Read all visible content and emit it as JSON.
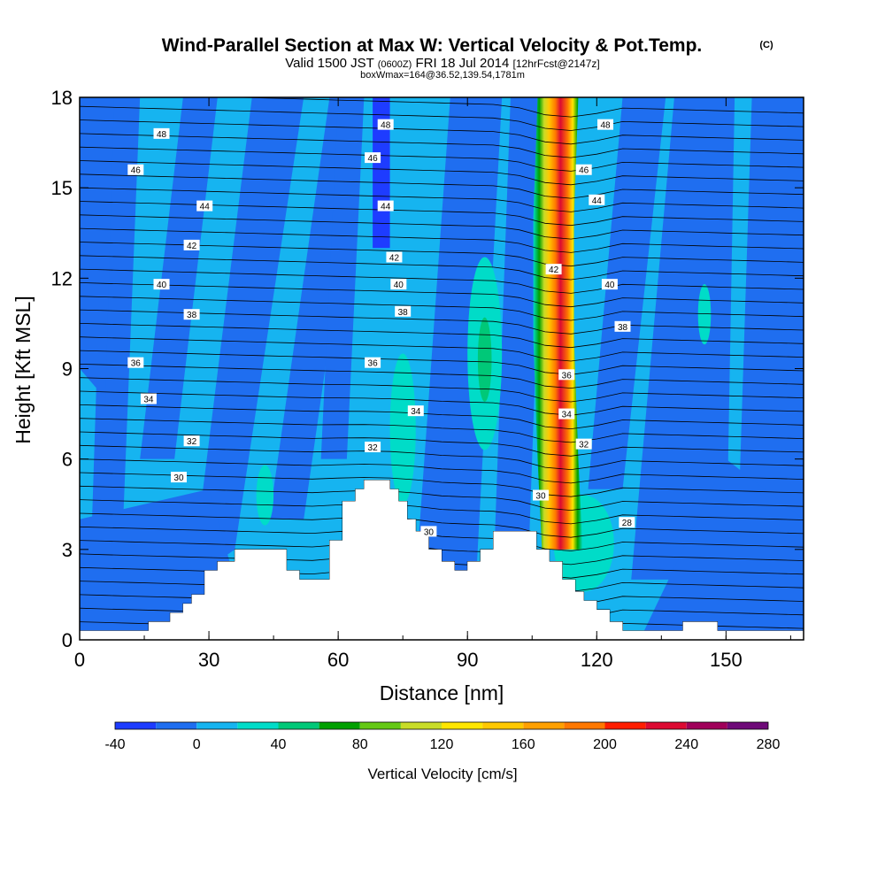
{
  "chart_data": {
    "type": "heatmap",
    "title": "Wind-Parallel Section at Max W: Vertical Velocity & Pot.Temp.",
    "title_suffix": "(C)",
    "subtitle_pre": "Valid 1500 JST ",
    "subtitle_small": "(0600Z)",
    "subtitle_post": " FRI 18 Jul 2014 ",
    "subtitle_fcst": "[12hrFcst@2147z]",
    "subtitle2": "boxWmax=164@36.52,139.54,1781m",
    "xlabel": "Distance [nm]",
    "ylabel": "Height [Kft MSL]",
    "colorbar_label": "Vertical Velocity [cm/s]",
    "xlim": [
      0,
      168
    ],
    "ylim": [
      0,
      18
    ],
    "xticks": [
      0,
      30,
      60,
      90,
      120,
      150
    ],
    "yticks": [
      0,
      3,
      6,
      9,
      12,
      15,
      18
    ],
    "colorbar_levels": [
      -40,
      -20,
      0,
      20,
      40,
      60,
      80,
      100,
      120,
      140,
      160,
      180,
      200,
      220,
      240,
      260,
      280
    ],
    "colorbar_ticks": [
      -40,
      0,
      40,
      80,
      120,
      160,
      200,
      240,
      280
    ],
    "colors": [
      "#1e3cff",
      "#1f6ef0",
      "#16b4f0",
      "#00dcc8",
      "#00c878",
      "#00a000",
      "#64c814",
      "#c8dc28",
      "#ffe600",
      "#ffc800",
      "#ffa000",
      "#ff7800",
      "#ff1e00",
      "#dc0a32",
      "#a0005a",
      "#6e0a78"
    ],
    "theta_contours": [
      {
        "value": "28",
        "x": 127,
        "y": 3.9
      },
      {
        "value": "30",
        "x": 23,
        "y": 5.4
      },
      {
        "value": "30",
        "x": 81,
        "y": 3.6
      },
      {
        "value": "30",
        "x": 107,
        "y": 4.8
      },
      {
        "value": "32",
        "x": 26,
        "y": 6.6
      },
      {
        "value": "32",
        "x": 68,
        "y": 6.4
      },
      {
        "value": "32",
        "x": 117,
        "y": 6.5
      },
      {
        "value": "34",
        "x": 16,
        "y": 8.0
      },
      {
        "value": "34",
        "x": 78,
        "y": 7.6
      },
      {
        "value": "34",
        "x": 113,
        "y": 7.5
      },
      {
        "value": "36",
        "x": 13,
        "y": 9.2
      },
      {
        "value": "36",
        "x": 68,
        "y": 9.2
      },
      {
        "value": "36",
        "x": 113,
        "y": 8.8
      },
      {
        "value": "38",
        "x": 26,
        "y": 10.8
      },
      {
        "value": "38",
        "x": 75,
        "y": 10.9
      },
      {
        "value": "38",
        "x": 126,
        "y": 10.4
      },
      {
        "value": "40",
        "x": 19,
        "y": 11.8
      },
      {
        "value": "40",
        "x": 74,
        "y": 11.8
      },
      {
        "value": "40",
        "x": 123,
        "y": 11.8
      },
      {
        "value": "42",
        "x": 26,
        "y": 13.1
      },
      {
        "value": "42",
        "x": 73,
        "y": 12.7
      },
      {
        "value": "42",
        "x": 110,
        "y": 12.3
      },
      {
        "value": "44",
        "x": 29,
        "y": 14.4
      },
      {
        "value": "44",
        "x": 71,
        "y": 14.4
      },
      {
        "value": "44",
        "x": 120,
        "y": 14.6
      },
      {
        "value": "46",
        "x": 13,
        "y": 15.6
      },
      {
        "value": "46",
        "x": 68,
        "y": 16.0
      },
      {
        "value": "46",
        "x": 117,
        "y": 15.6
      },
      {
        "value": "48",
        "x": 19,
        "y": 16.8
      },
      {
        "value": "48",
        "x": 71,
        "y": 17.1
      },
      {
        "value": "48",
        "x": 122,
        "y": 17.1
      }
    ],
    "terrain_height_kft": [
      [
        0,
        0.3
      ],
      [
        13,
        0.3
      ],
      [
        16,
        0.6
      ],
      [
        21,
        0.9
      ],
      [
        24,
        1.2
      ],
      [
        26,
        1.5
      ],
      [
        29,
        2.3
      ],
      [
        32,
        2.6
      ],
      [
        36,
        3.0
      ],
      [
        45,
        3.0
      ],
      [
        48,
        2.3
      ],
      [
        51,
        2.0
      ],
      [
        56,
        2.0
      ],
      [
        58,
        3.3
      ],
      [
        61,
        4.6
      ],
      [
        64,
        5.0
      ],
      [
        66,
        5.3
      ],
      [
        70,
        5.3
      ],
      [
        72,
        5.0
      ],
      [
        74,
        4.6
      ],
      [
        76,
        4.0
      ],
      [
        78,
        3.6
      ],
      [
        81,
        3.0
      ],
      [
        84,
        2.6
      ],
      [
        87,
        2.3
      ],
      [
        90,
        2.6
      ],
      [
        93,
        3.0
      ],
      [
        96,
        3.6
      ],
      [
        102,
        3.6
      ],
      [
        106,
        3.0
      ],
      [
        109,
        2.6
      ],
      [
        112,
        2.0
      ],
      [
        115,
        1.6
      ],
      [
        117,
        1.3
      ],
      [
        120,
        1.0
      ],
      [
        123,
        0.6
      ],
      [
        126,
        0.3
      ],
      [
        139,
        0.3
      ],
      [
        140,
        0.6
      ],
      [
        147,
        0.6
      ],
      [
        148,
        0.3
      ],
      [
        168,
        0.3
      ]
    ]
  }
}
